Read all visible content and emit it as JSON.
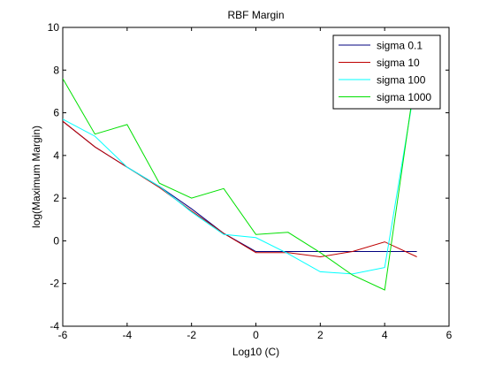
{
  "chart_data": {
    "type": "line",
    "title": "RBF Margin",
    "xlabel": "Log10 (C)",
    "ylabel": "log(Maximum Margin)",
    "xlim": [
      -6,
      6
    ],
    "ylim": [
      -4,
      10
    ],
    "xticks": [
      -6,
      -4,
      -2,
      0,
      2,
      4,
      6
    ],
    "yticks": [
      -4,
      -2,
      0,
      2,
      4,
      6,
      8,
      10
    ],
    "grid": false,
    "legend_position": "top-right",
    "x": [
      -6,
      -5,
      -4,
      -3,
      -2,
      -1,
      0,
      1,
      2,
      3,
      4,
      5
    ],
    "series": [
      {
        "name": "sigma 0.1",
        "color": "#00007f",
        "values": [
          5.6,
          4.4,
          3.45,
          2.55,
          1.5,
          0.35,
          -0.5,
          -0.5,
          -0.5,
          -0.5,
          -0.5,
          -0.5
        ]
      },
      {
        "name": "sigma 10",
        "color": "#bf0000",
        "values": [
          5.6,
          4.4,
          3.45,
          2.5,
          1.4,
          0.35,
          -0.55,
          -0.55,
          -0.75,
          -0.5,
          -0.05,
          -0.75
        ]
      },
      {
        "name": "sigma 100",
        "color": "#00ffff",
        "values": [
          5.7,
          4.9,
          3.45,
          2.55,
          1.35,
          0.3,
          0.15,
          -0.6,
          -1.45,
          -1.55,
          -1.25,
          7.8
        ]
      },
      {
        "name": "sigma 1000",
        "color": "#00e000",
        "values": [
          7.6,
          5.0,
          5.45,
          2.7,
          2.0,
          2.45,
          0.3,
          0.4,
          -0.55,
          -1.6,
          -2.3,
          8.2
        ]
      }
    ]
  }
}
